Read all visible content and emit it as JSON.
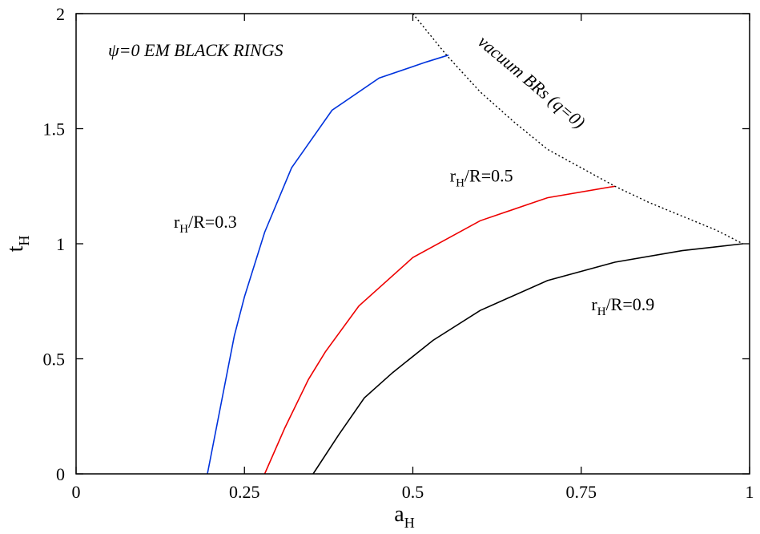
{
  "chart_data": {
    "type": "line",
    "title": "ψ=0 EM BLACK RINGS",
    "xlabel": {
      "main": "a",
      "sub": "H"
    },
    "ylabel": {
      "main": "t",
      "sub": "H"
    },
    "xlim": [
      0,
      1.0
    ],
    "ylim": [
      0,
      2.0
    ],
    "x_ticks": [
      0,
      0.25,
      0.5,
      0.75,
      1
    ],
    "x_tick_labels": [
      "0",
      "0.25",
      "0.5",
      "0.75",
      "1"
    ],
    "y_ticks": [
      0,
      0.5,
      1,
      1.5,
      2
    ],
    "y_tick_labels": [
      "0",
      "0.5",
      "1",
      "1.5",
      "2"
    ],
    "grid": false,
    "series": [
      {
        "name": {
          "main": "r",
          "sub": "H",
          "rest": "/R=0.3"
        },
        "color": "#0033dd",
        "style": "solid",
        "x": [
          0.195,
          0.215,
          0.235,
          0.25,
          0.28,
          0.32,
          0.38,
          0.45,
          0.52,
          0.553
        ],
        "y": [
          0.0,
          0.3,
          0.6,
          0.77,
          1.05,
          1.33,
          1.58,
          1.72,
          1.79,
          1.82
        ]
      },
      {
        "name": {
          "main": "r",
          "sub": "H",
          "rest": "/R=0.5"
        },
        "color": "#ee0000",
        "style": "solid",
        "x": [
          0.28,
          0.31,
          0.345,
          0.37,
          0.42,
          0.5,
          0.6,
          0.7,
          0.8
        ],
        "y": [
          0.0,
          0.2,
          0.41,
          0.53,
          0.73,
          0.94,
          1.1,
          1.2,
          1.25
        ]
      },
      {
        "name": {
          "main": "r",
          "sub": "H",
          "rest": "/R=0.9"
        },
        "color": "#000000",
        "style": "solid",
        "x": [
          0.352,
          0.39,
          0.428,
          0.47,
          0.53,
          0.6,
          0.7,
          0.8,
          0.9,
          0.99
        ],
        "y": [
          0.0,
          0.17,
          0.33,
          0.44,
          0.58,
          0.71,
          0.84,
          0.92,
          0.97,
          1.0
        ]
      },
      {
        "name": "vacuum BRs (q=0)",
        "color": "#000000",
        "style": "dotted",
        "x": [
          0.5,
          0.55,
          0.6,
          0.65,
          0.7,
          0.75,
          0.8,
          0.85,
          0.9,
          0.95,
          0.99
        ],
        "y": [
          2.0,
          1.82,
          1.66,
          1.53,
          1.41,
          1.33,
          1.25,
          1.18,
          1.12,
          1.06,
          1.0
        ]
      }
    ],
    "annotations": [
      {
        "main": "r",
        "sub": "H",
        "rest": "/R=0.3",
        "x": 0.145,
        "y": 1.07
      },
      {
        "main": "r",
        "sub": "H",
        "rest": "/R=0.5",
        "x": 0.555,
        "y": 1.27
      },
      {
        "main": "r",
        "sub": "H",
        "rest": "/R=0.9",
        "x": 0.765,
        "y": 0.71
      },
      {
        "text": "vacuum BRs (q=0)",
        "x": 0.595,
        "y": 1.87,
        "rotate": 40
      }
    ]
  }
}
